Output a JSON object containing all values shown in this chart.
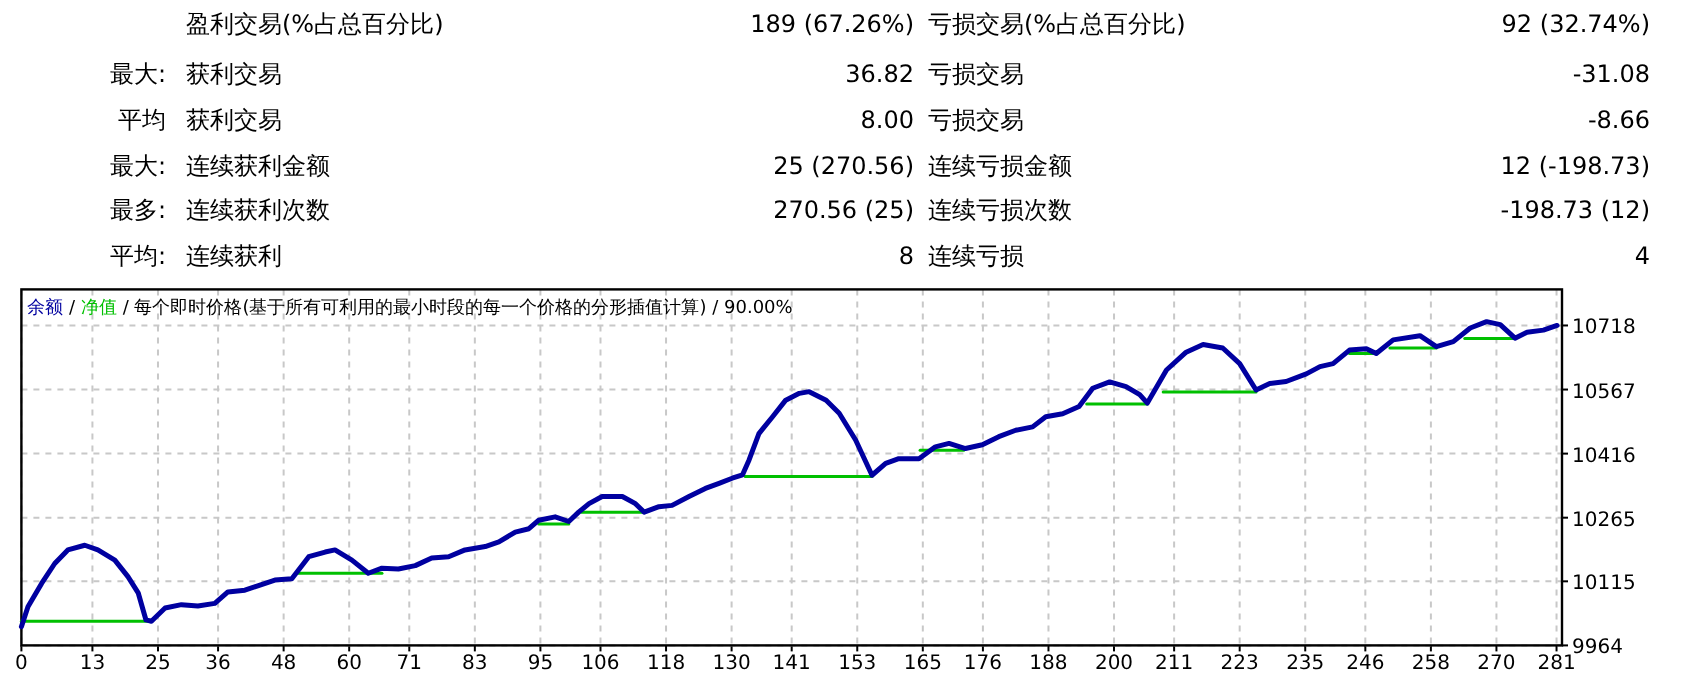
{
  "chart_data": {
    "type": "line",
    "title": "每个即时价格(基于所有可利用的最小时段的每一个价格的分形插值计算)",
    "subtitle": "90.00%",
    "annotations": [
      "盈利交易(%占总百分比)",
      "189 (67.26%)",
      "亏损交易(%占总百分比)",
      "92 (32.74%)",
      "最大:",
      "获利交易",
      "36.82",
      "亏损交易",
      "-31.08",
      "平均",
      "获利交易",
      "8.00",
      "亏损交易",
      "-8.66",
      "最大:",
      "连续获利金额",
      "25 (270.56)",
      "连续亏损金额",
      "12 (-198.73)",
      "最多:",
      "连续获利次数",
      "270.56 (25)",
      "连续亏损次数",
      "-198.73 (12)",
      "平均:",
      "连续获利",
      "8",
      "连续亏损",
      "4",
      "/",
      "/",
      "/"
    ],
    "xlim": [
      0,
      282
    ],
    "ylim": [
      9964,
      10803
    ],
    "xticks": [
      0,
      13,
      25,
      36,
      48,
      60,
      71,
      83,
      95,
      106,
      118,
      130,
      141,
      153,
      165,
      176,
      188,
      200,
      211,
      223,
      235,
      246,
      258,
      270,
      281
    ],
    "yticks": [
      9964,
      10115,
      10265,
      10416,
      10567,
      10718
    ],
    "grid": true,
    "legend": "top left",
    "series": [
      {
        "name": "净值",
        "color": "#00c000",
        "x": [
          0,
          23.8
        ],
        "values": [
          10021,
          10021
        ]
      },
      {
        "color": "#00c000",
        "x": [
          50.5,
          66.0
        ],
        "values": [
          10134,
          10134
        ]
      },
      {
        "color": "#00c000",
        "x": [
          94.7,
          100.2
        ],
        "values": [
          10250,
          10250
        ]
      },
      {
        "color": "#00c000",
        "x": [
          102.5,
          114.0
        ],
        "values": [
          10278,
          10278
        ]
      },
      {
        "color": "#00c000",
        "x": [
          132.5,
          155.7
        ],
        "values": [
          10362,
          10362
        ]
      },
      {
        "color": "#00c000",
        "x": [
          164.5,
          172.5
        ],
        "values": [
          10424,
          10424
        ]
      },
      {
        "color": "#00c000",
        "x": [
          195,
          206.1
        ],
        "values": [
          10533,
          10533
        ]
      },
      {
        "color": "#00c000",
        "x": [
          209,
          226.0
        ],
        "values": [
          10561,
          10561
        ]
      },
      {
        "color": "#00c000",
        "x": [
          243.1,
          248.0
        ],
        "values": [
          10652,
          10652
        ]
      },
      {
        "color": "#00c000",
        "x": [
          250.5,
          259.0
        ],
        "values": [
          10665,
          10665
        ]
      },
      {
        "color": "#00c000",
        "x": [
          264.2,
          273.4
        ],
        "values": [
          10687,
          10687
        ]
      },
      {
        "name": "余额",
        "color": "#0000a0",
        "x": [
          0,
          1.2,
          3.7,
          6.1,
          8.5,
          11.6,
          14.0,
          17.1,
          19.5,
          21.4,
          22.8,
          23.8,
          26.3,
          29.3,
          32.3,
          35.4,
          37.8,
          40.9,
          43.4,
          46.4,
          49.5,
          52.6,
          55.6,
          57.4,
          60.5,
          63.5,
          66.0,
          69.0,
          72.1,
          75.1,
          78.2,
          81.2,
          84.9,
          87.4,
          90.4,
          92.9,
          94.7,
          97.7,
          100.2,
          102.0,
          103.9,
          106.3,
          110.0,
          112.4,
          114.0,
          116.7,
          119.1,
          122.2,
          125.2,
          127.7,
          130.1,
          132.0,
          133.2,
          135.0,
          137.5,
          139.9,
          142.4,
          144.2,
          147.3,
          149.7,
          152.7,
          155.7,
          158.2,
          160.6,
          164.3,
          167.3,
          169.8,
          172.8,
          175.9,
          178.9,
          182.0,
          185.1,
          187.5,
          190.6,
          193.6,
          196.1,
          199.2,
          202.2,
          204.7,
          206.1,
          209.6,
          213.2,
          216.3,
          219.9,
          223.0,
          226.0,
          228.5,
          231.5,
          235.2,
          237.7,
          240.1,
          243.1,
          246.2,
          248.0,
          251.1,
          256.0,
          259.0,
          262.1,
          265.2,
          268.2,
          270.7,
          273.4,
          275.6,
          278.6,
          281.1
        ],
        "values": [
          10008,
          10055,
          10110,
          10157,
          10189,
          10200,
          10189,
          10165,
          10126,
          10087,
          10024,
          10021,
          10052,
          10060,
          10057,
          10063,
          10090,
          10094,
          10105,
          10118,
          10121,
          10173,
          10184,
          10189,
          10165,
          10134,
          10146,
          10144,
          10152,
          10170,
          10173,
          10189,
          10197,
          10208,
          10231,
          10239,
          10259,
          10267,
          10256,
          10278,
          10298,
          10315,
          10315,
          10298,
          10278,
          10291,
          10294,
          10315,
          10334,
          10346,
          10358,
          10366,
          10401,
          10463,
          10503,
          10542,
          10558,
          10562,
          10542,
          10511,
          10448,
          10365,
          10393,
          10404,
          10404,
          10432,
          10440,
          10428,
          10437,
          10456,
          10471,
          10479,
          10503,
          10510,
          10527,
          10570,
          10585,
          10574,
          10555,
          10535,
          10613,
          10655,
          10673,
          10665,
          10628,
          10566,
          10581,
          10586,
          10604,
          10621,
          10628,
          10660,
          10663,
          10652,
          10684,
          10694,
          10668,
          10680,
          10712,
          10727,
          10720,
          10688,
          10702,
          10707,
          10718
        ]
      }
    ]
  }
}
